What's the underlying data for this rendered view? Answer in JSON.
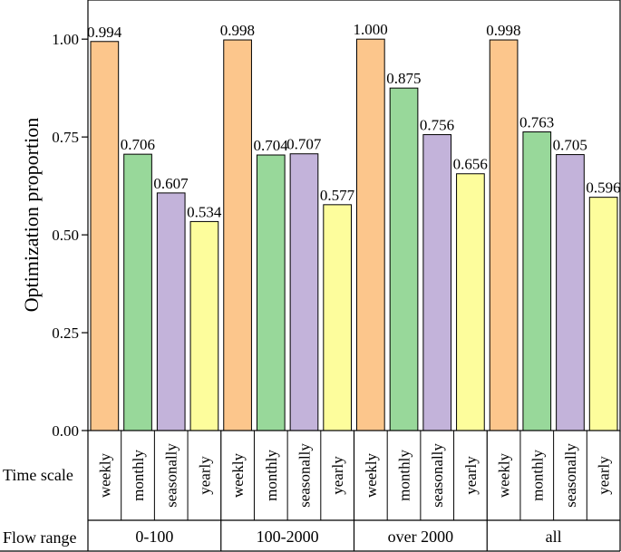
{
  "chart_data": {
    "type": "bar",
    "ylabel": "Optimization proportion",
    "ylim": [
      0,
      1.1
    ],
    "yticks": [
      "0.00",
      "0.25",
      "0.50",
      "0.75",
      "1.00"
    ],
    "time_scale_label": "Time scale",
    "flow_range_label": "Flow range",
    "time_scales": [
      "weekly",
      "monthly",
      "seasonally",
      "yearly"
    ],
    "groups": [
      {
        "name": "0-100",
        "values": [
          0.994,
          0.706,
          0.607,
          0.534
        ],
        "labels": [
          "0.994",
          "0.706",
          "0.607",
          "0.534"
        ]
      },
      {
        "name": "100-2000",
        "values": [
          0.998,
          0.704,
          0.707,
          0.577
        ],
        "labels": [
          "0.998",
          "0.704",
          "0.707",
          "0.577"
        ]
      },
      {
        "name": "over 2000",
        "values": [
          1.0,
          0.875,
          0.756,
          0.656
        ],
        "labels": [
          "1.000",
          "0.875",
          "0.756",
          "0.656"
        ]
      },
      {
        "name": "all",
        "values": [
          0.998,
          0.763,
          0.705,
          0.596
        ],
        "labels": [
          "0.998",
          "0.763",
          "0.705",
          "0.596"
        ]
      }
    ],
    "colors": [
      "#fcc68c",
      "#98d89a",
      "#c3b3da",
      "#fdfd9c"
    ]
  }
}
